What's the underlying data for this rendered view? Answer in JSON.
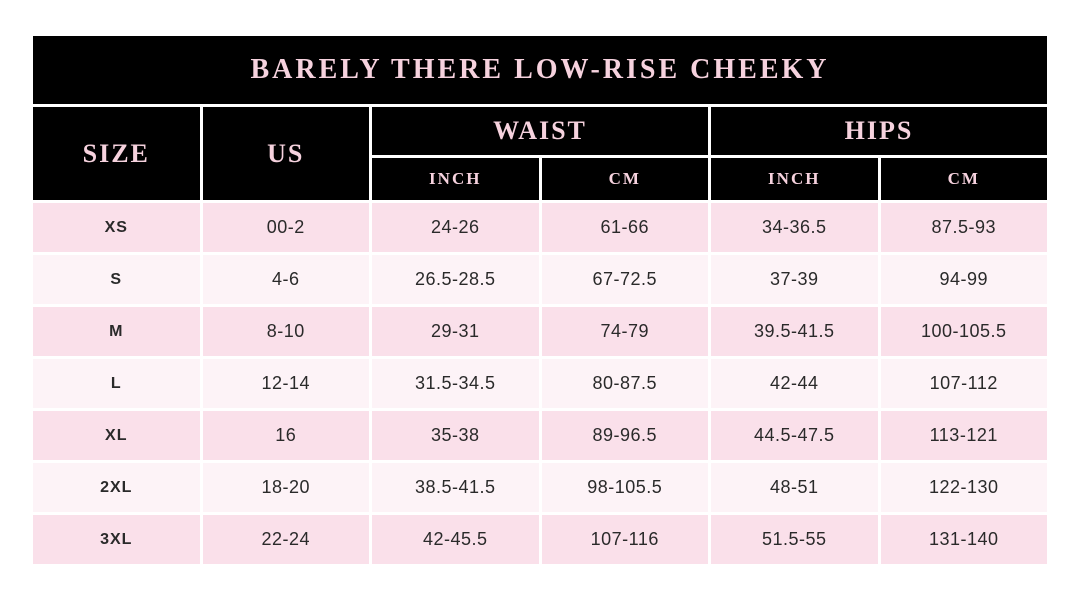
{
  "title": "BARELY THERE LOW-RISE CHEEKY",
  "table": {
    "headers": {
      "size": "SIZE",
      "us": "US",
      "waist": "WAIST",
      "hips": "HIPS",
      "waist_inch": "INCH",
      "waist_cm": "CM",
      "hips_inch": "INCH",
      "hips_cm": "CM"
    },
    "rows": [
      [
        "XS",
        "00-2",
        "24-26",
        "61-66",
        "34-36.5",
        "87.5-93"
      ],
      [
        "S",
        "4-6",
        "26.5-28.5",
        "67-72.5",
        "37-39",
        "94-99"
      ],
      [
        "M",
        "8-10",
        "29-31",
        "74-79",
        "39.5-41.5",
        "100-105.5"
      ],
      [
        "L",
        "12-14",
        "31.5-34.5",
        "80-87.5",
        "42-44",
        "107-112"
      ],
      [
        "XL",
        "16",
        "35-38",
        "89-96.5",
        "44.5-47.5",
        "113-121"
      ],
      [
        "2XL",
        "18-20",
        "38.5-41.5",
        "98-105.5",
        "48-51",
        "122-130"
      ],
      [
        "3XL",
        "22-24",
        "42-45.5",
        "107-116",
        "51.5-55",
        "131-140"
      ]
    ]
  },
  "colors": {
    "page-bg": "#ffffff",
    "header-bg": "#000000",
    "header-text": "#f6d2de",
    "row-dark": "#fae0ea",
    "row-light": "#fdf3f7",
    "cell-text": "#2a2a2a"
  }
}
